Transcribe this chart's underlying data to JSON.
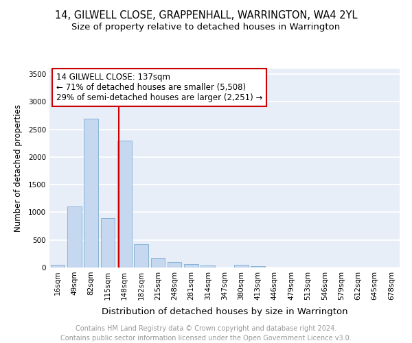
{
  "title1": "14, GILWELL CLOSE, GRAPPENHALL, WARRINGTON, WA4 2YL",
  "title2": "Size of property relative to detached houses in Warrington",
  "xlabel": "Distribution of detached houses by size in Warrington",
  "ylabel": "Number of detached properties",
  "categories": [
    "16sqm",
    "49sqm",
    "82sqm",
    "115sqm",
    "148sqm",
    "182sqm",
    "215sqm",
    "248sqm",
    "281sqm",
    "314sqm",
    "347sqm",
    "380sqm",
    "413sqm",
    "446sqm",
    "479sqm",
    "513sqm",
    "546sqm",
    "579sqm",
    "612sqm",
    "645sqm",
    "678sqm"
  ],
  "values": [
    50,
    1100,
    2700,
    900,
    2300,
    420,
    170,
    100,
    60,
    35,
    0,
    50,
    30,
    0,
    0,
    0,
    0,
    0,
    0,
    0,
    0
  ],
  "bar_color": "#c5d8ef",
  "bar_edge_color": "#7aadd4",
  "background_color": "#e8eef7",
  "grid_color": "#ffffff",
  "annotation_text": "14 GILWELL CLOSE: 137sqm\n← 71% of detached houses are smaller (5,508)\n29% of semi-detached houses are larger (2,251) →",
  "annotation_box_color": "#ffffff",
  "annotation_box_edge": "#cc0000",
  "vline_color": "#cc0000",
  "ylim": [
    0,
    3600
  ],
  "yticks": [
    0,
    500,
    1000,
    1500,
    2000,
    2500,
    3000,
    3500
  ],
  "footer": "Contains HM Land Registry data © Crown copyright and database right 2024.\nContains public sector information licensed under the Open Government Licence v3.0.",
  "title1_fontsize": 10.5,
  "title2_fontsize": 9.5,
  "xlabel_fontsize": 9.5,
  "ylabel_fontsize": 8.5,
  "tick_fontsize": 7.5,
  "footer_fontsize": 7.0,
  "ann_fontsize": 8.5
}
